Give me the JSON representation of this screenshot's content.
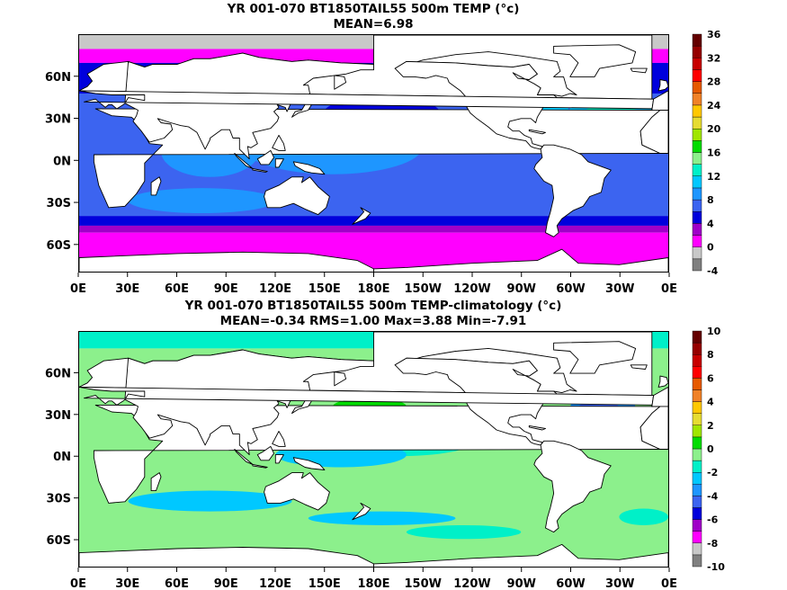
{
  "chart_data": [
    {
      "type": "heatmap",
      "title": "YR 001-070 BT1850TAIL55 500m TEMP (°c)",
      "subtitle": "MEAN=6.98",
      "x_ticks": [
        "0E",
        "30E",
        "60E",
        "90E",
        "120E",
        "150E",
        "180E",
        "150W",
        "120W",
        "90W",
        "60W",
        "30W",
        "0E"
      ],
      "y_ticks": [
        "60N",
        "30N",
        "0N",
        "30S",
        "60S"
      ],
      "colorbar": {
        "levels": [
          "-4",
          "0",
          "4",
          "8",
          "12",
          "16",
          "20",
          "24",
          "28",
          "32",
          "36"
        ],
        "colors": [
          "#808080",
          "#c8c8c8",
          "#ff00ff",
          "#a000c8",
          "#0000dc",
          "#3c64f0",
          "#1e96ff",
          "#00c8ff",
          "#00f0c8",
          "#8cf08c",
          "#00dc00",
          "#a0e600",
          "#e6dc32",
          "#ffc800",
          "#f08228",
          "#e65a00",
          "#ff0000",
          "#c80000",
          "#960000",
          "#640000"
        ]
      },
      "mean": 6.98
    },
    {
      "type": "heatmap",
      "title": "YR 001-070 BT1850TAIL55 500m TEMP-climatology (°c)",
      "subtitle": "MEAN=-0.34   RMS=1.00   Max=3.88   Min=-7.91",
      "x_ticks": [
        "0E",
        "30E",
        "60E",
        "90E",
        "120E",
        "150E",
        "180E",
        "150W",
        "120W",
        "90W",
        "60W",
        "30W",
        "0E"
      ],
      "y_ticks": [
        "60N",
        "30N",
        "0N",
        "30S",
        "60S"
      ],
      "colorbar": {
        "levels": [
          "-10",
          "-8",
          "-6",
          "-4",
          "-2",
          "0",
          "2",
          "4",
          "6",
          "8",
          "10"
        ],
        "colors": [
          "#808080",
          "#c8c8c8",
          "#ff00ff",
          "#a000c8",
          "#0000dc",
          "#3c64f0",
          "#1e96ff",
          "#00c8ff",
          "#00f0c8",
          "#8cf08c",
          "#00dc00",
          "#a0e600",
          "#e6dc32",
          "#ffc800",
          "#f08228",
          "#e65a00",
          "#ff0000",
          "#c80000",
          "#960000",
          "#640000"
        ]
      },
      "mean": -0.34,
      "rms": 1.0,
      "max": 3.88,
      "min": -7.91
    }
  ]
}
